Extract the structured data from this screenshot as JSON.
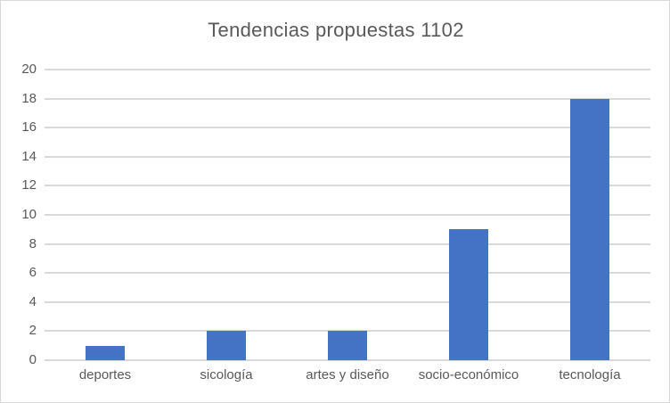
{
  "chart": {
    "title": "Tendencias propuestas 1102"
  },
  "chart_data": {
    "type": "bar",
    "title": "Tendencias propuestas 1102",
    "categories": [
      "deportes",
      "sicología",
      "artes y diseño",
      "socio-económico",
      "tecnología"
    ],
    "values": [
      1,
      2,
      2,
      9,
      18
    ],
    "xlabel": "",
    "ylabel": "",
    "ylim": [
      0,
      20
    ],
    "ytick_step": 2,
    "ytick_labels": [
      "0",
      "2",
      "4",
      "6",
      "8",
      "10",
      "12",
      "14",
      "16",
      "18",
      "20"
    ],
    "grid": true,
    "legend": false,
    "colors": {
      "bar": "#4472C4",
      "title_text": "#595959",
      "axis_text": "#595959",
      "gridline": "#D9D9D9",
      "axis_line": "#D9D9D9",
      "border": "#D9D9D9",
      "background": "#FFFFFF"
    }
  }
}
